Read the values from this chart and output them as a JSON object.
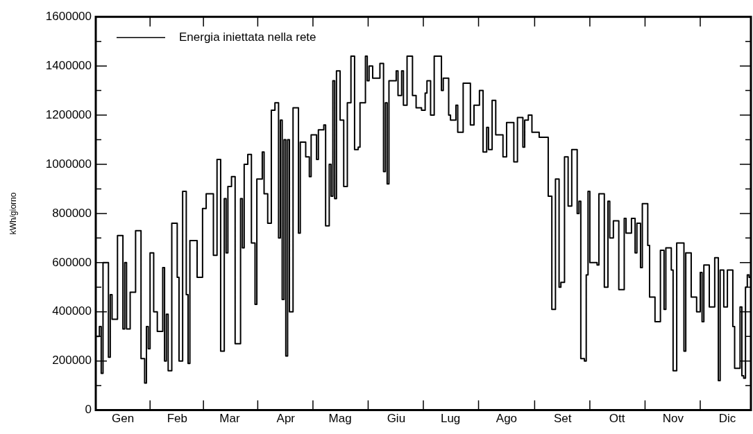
{
  "chart_data": {
    "type": "step",
    "ylabel": "kWh/giorno",
    "legend": "top left",
    "grid": false,
    "categories": [
      null,
      null,
      null,
      null,
      null,
      null,
      null,
      null,
      null,
      null,
      null,
      null,
      null,
      null,
      null,
      "Gen",
      null,
      null,
      null,
      null,
      null,
      null,
      null,
      null,
      null,
      null,
      null,
      null,
      null,
      null,
      null,
      null,
      null,
      null,
      null,
      null,
      null,
      null,
      null,
      null,
      null,
      null,
      null,
      null,
      null,
      "Feb",
      null,
      null,
      null,
      null,
      null,
      null,
      null,
      null,
      null,
      null,
      null,
      null,
      null,
      null,
      null,
      null,
      null,
      null,
      null,
      null,
      null,
      null,
      null,
      null,
      null,
      null,
      null,
      null,
      "Mar",
      null,
      null,
      null,
      null,
      null,
      null,
      null,
      null,
      null,
      null,
      null,
      null,
      null,
      null,
      null,
      null,
      null,
      null,
      null,
      null,
      null,
      null,
      null,
      null,
      null,
      null,
      null,
      null,
      null,
      null,
      "Apr",
      null,
      null,
      null,
      null,
      null,
      null,
      null,
      null,
      null,
      null,
      null,
      null,
      null,
      null,
      null,
      null,
      null,
      null,
      null,
      null,
      null,
      null,
      null,
      null,
      null,
      null,
      null,
      null,
      null,
      "Mag",
      null,
      null,
      null,
      null,
      null,
      null,
      null,
      null,
      null,
      null,
      null,
      null,
      null,
      null,
      null,
      null,
      null,
      null,
      null,
      null,
      null,
      null,
      null,
      null,
      null,
      null,
      null,
      null,
      null,
      null,
      "Giu",
      null,
      null,
      null,
      null,
      null,
      null,
      null,
      null,
      null,
      null,
      null,
      null,
      null,
      null,
      null,
      null,
      null,
      null,
      null,
      null,
      null,
      null,
      null,
      null,
      null,
      null,
      null,
      null,
      null,
      "Lug",
      null,
      null,
      null,
      null,
      null,
      null,
      null,
      null,
      null,
      null,
      null,
      null,
      null,
      null,
      null,
      null,
      null,
      null,
      null,
      null,
      null,
      null,
      null,
      null,
      null,
      null,
      null,
      null,
      null,
      null,
      "Ago",
      null,
      null,
      null,
      null,
      null,
      null,
      null,
      null,
      null,
      null,
      null,
      null,
      null,
      null,
      null,
      null,
      null,
      null,
      null,
      null,
      null,
      null,
      null,
      null,
      null,
      null,
      null,
      null,
      null,
      null,
      "Set",
      null,
      null,
      null,
      null,
      null,
      null,
      null,
      null,
      null,
      null,
      null,
      null,
      null,
      null,
      null,
      null,
      null,
      null,
      null,
      null,
      null,
      null,
      null,
      null,
      null,
      null,
      null,
      null,
      null,
      "Ott",
      null,
      null,
      null,
      null,
      null,
      null,
      null,
      null,
      null,
      null,
      null,
      null,
      null,
      null,
      null,
      null,
      null,
      null,
      null,
      null,
      null,
      null,
      null,
      null,
      null,
      null,
      null,
      null,
      null,
      null,
      "Nov",
      null,
      null,
      null,
      null,
      null,
      null,
      null,
      null,
      null,
      null,
      null,
      null,
      null,
      null,
      null,
      null,
      null,
      null,
      null,
      null,
      null,
      null,
      null,
      null,
      null,
      null,
      null,
      null,
      null,
      "Dic",
      null,
      null,
      null,
      null,
      null,
      null,
      null,
      null,
      null,
      null,
      null,
      null,
      null
    ],
    "series": [
      {
        "name": "Energia iniettata nella rete",
        "color": "#000000",
        "values": [
          300000,
          300000,
          300000,
          340000,
          150000,
          600000,
          600000,
          600000,
          215000,
          470000,
          370000,
          370000,
          370000,
          710000,
          710000,
          710000,
          330000,
          600000,
          330000,
          330000,
          480000,
          480000,
          480000,
          730000,
          730000,
          730000,
          210000,
          210000,
          110000,
          340000,
          250000,
          640000,
          640000,
          400000,
          400000,
          320000,
          320000,
          320000,
          580000,
          200000,
          390000,
          160000,
          160000,
          760000,
          760000,
          760000,
          540000,
          200000,
          200000,
          890000,
          890000,
          470000,
          190000,
          690000,
          690000,
          690000,
          690000,
          540000,
          540000,
          540000,
          820000,
          820000,
          880000,
          880000,
          880000,
          880000,
          630000,
          630000,
          1020000,
          1020000,
          240000,
          240000,
          860000,
          640000,
          910000,
          910000,
          950000,
          950000,
          270000,
          270000,
          270000,
          860000,
          660000,
          1000000,
          1000000,
          1040000,
          1040000,
          680000,
          680000,
          430000,
          940000,
          940000,
          940000,
          1050000,
          880000,
          880000,
          760000,
          760000,
          1220000,
          1220000,
          1250000,
          1250000,
          700000,
          1180000,
          450000,
          1100000,
          220000,
          1100000,
          400000,
          400000,
          1230000,
          1230000,
          1230000,
          720000,
          1090000,
          1090000,
          1090000,
          1030000,
          1030000,
          950000,
          1120000,
          1120000,
          1120000,
          1020000,
          1140000,
          1140000,
          1140000,
          1160000,
          750000,
          750000,
          1000000,
          870000,
          1340000,
          860000,
          1380000,
          1380000,
          1180000,
          1180000,
          910000,
          910000,
          1250000,
          1250000,
          1440000,
          1440000,
          1060000,
          1060000,
          1070000,
          1250000,
          1250000,
          1250000,
          1440000,
          1340000,
          1400000,
          1400000,
          1350000,
          1350000,
          1350000,
          1350000,
          1410000,
          1410000,
          970000,
          1250000,
          920000,
          1340000,
          1340000,
          1340000,
          1340000,
          1380000,
          1280000,
          1280000,
          1380000,
          1240000,
          1240000,
          1440000,
          1440000,
          1440000,
          1280000,
          1280000,
          1230000,
          1230000,
          1230000,
          1220000,
          1220000,
          1290000,
          1340000,
          1340000,
          1200000,
          1200000,
          1440000,
          1440000,
          1440000,
          1440000,
          1300000,
          1350000,
          1350000,
          1350000,
          1200000,
          1180000,
          1180000,
          1180000,
          1240000,
          1130000,
          1130000,
          1130000,
          1330000,
          1330000,
          1330000,
          1330000,
          1160000,
          1160000,
          1240000,
          1240000,
          1240000,
          1300000,
          1300000,
          1050000,
          1050000,
          1150000,
          1060000,
          1060000,
          1260000,
          1260000,
          1120000,
          1120000,
          1120000,
          1120000,
          1030000,
          1030000,
          1170000,
          1170000,
          1170000,
          1170000,
          1010000,
          1010000,
          1190000,
          1190000,
          1190000,
          1070000,
          1180000,
          1180000,
          1200000,
          1200000,
          1130000,
          1130000,
          1130000,
          1130000,
          1110000,
          1110000,
          1110000,
          1110000,
          1110000,
          870000,
          870000,
          410000,
          410000,
          940000,
          940000,
          500000,
          520000,
          520000,
          1030000,
          1030000,
          830000,
          830000,
          1060000,
          1060000,
          1060000,
          800000,
          850000,
          210000,
          210000,
          200000,
          550000,
          890000,
          600000,
          600000,
          600000,
          600000,
          590000,
          880000,
          880000,
          880000,
          500000,
          500000,
          850000,
          700000,
          700000,
          770000,
          770000,
          770000,
          490000,
          490000,
          490000,
          780000,
          720000,
          720000,
          720000,
          780000,
          780000,
          640000,
          760000,
          760000,
          580000,
          840000,
          840000,
          840000,
          670000,
          460000,
          460000,
          460000,
          360000,
          360000,
          360000,
          650000,
          650000,
          410000,
          660000,
          660000,
          660000,
          570000,
          160000,
          160000,
          680000,
          680000,
          680000,
          680000,
          240000,
          640000,
          640000,
          640000,
          460000,
          460000,
          460000,
          400000,
          400000,
          560000,
          360000,
          590000,
          590000,
          590000,
          420000,
          420000,
          420000,
          620000,
          620000,
          120000,
          570000,
          570000,
          420000,
          420000,
          570000,
          570000,
          570000,
          340000,
          170000,
          170000,
          170000,
          420000,
          140000,
          130000,
          500000,
          550000,
          540000
        ]
      }
    ],
    "ylim": [
      0,
      1600000
    ],
    "yticks": [
      0,
      {
        "value": 100000,
        "label": null
      },
      200000,
      {
        "value": 300000,
        "label": null
      },
      400000,
      {
        "value": 500000,
        "label": null
      },
      600000,
      {
        "value": 700000,
        "label": null
      },
      800000,
      {
        "value": 900000,
        "label": null
      },
      1000000,
      {
        "value": 1100000,
        "label": null
      },
      1200000,
      {
        "value": 1300000,
        "label": null
      },
      1400000,
      {
        "value": 1500000,
        "label": null
      },
      1600000
    ]
  }
}
